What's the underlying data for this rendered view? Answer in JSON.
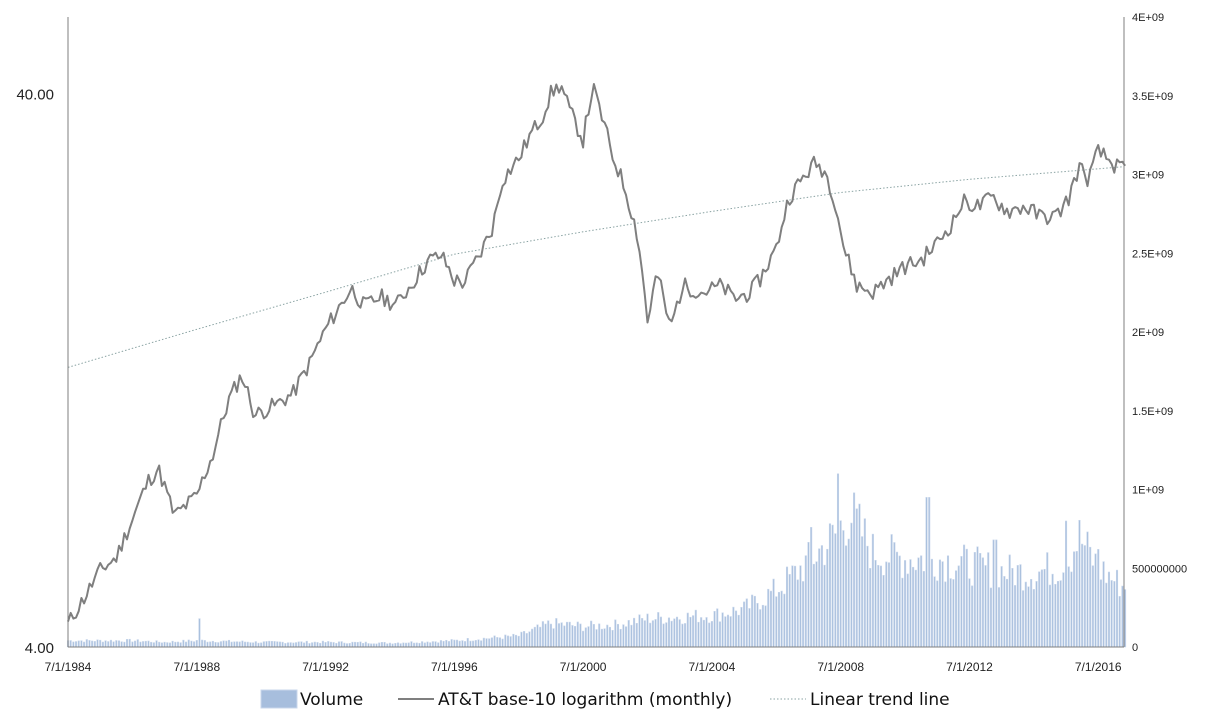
{
  "chart_data": {
    "type": "line",
    "title": "",
    "x_tick_labels": [
      "7/1/1984",
      "7/1/1988",
      "7/1/1992",
      "7/1/1996",
      "7/1/2000",
      "7/1/2004",
      "7/1/2008",
      "7/1/2012",
      "7/1/2016"
    ],
    "y_left": {
      "scale": "log10",
      "range": [
        4,
        55
      ],
      "tick_values": [
        4,
        40
      ],
      "tick_labels": [
        "4.00",
        "40.00"
      ]
    },
    "y_right": {
      "scale": "linear",
      "range": [
        0,
        4000000000
      ],
      "tick_values": [
        0,
        500000000,
        1000000000,
        1500000000,
        2000000000,
        2500000000,
        3000000000,
        3500000000,
        4000000000
      ],
      "tick_labels": [
        "0",
        "500000000",
        "1E+09",
        "1.5E+09",
        "2E+09",
        "2.5E+09",
        "3E+09",
        "3.5E+09",
        "4E+09"
      ]
    },
    "x_start_year": 1984.5,
    "x_end_year": 2017.3,
    "legend_position": "bottom",
    "legend": [
      "Volume",
      "AT&T base-10 logarithm (monthly)",
      "Linear trend line"
    ],
    "colors": {
      "volume": "#a7bedd",
      "volume_edge": "#c9d7eb",
      "price": "#7f7f7f",
      "trend": "#8aa3a3",
      "axis": "#7f7f7f"
    },
    "series": [
      {
        "name": "AT&T base-10 logarithm (monthly)",
        "axis": "left",
        "points": [
          [
            1984.5,
            4.4
          ],
          [
            1985.0,
            4.9
          ],
          [
            1985.5,
            5.5
          ],
          [
            1986.0,
            5.8
          ],
          [
            1986.5,
            6.8
          ],
          [
            1987.0,
            8.0
          ],
          [
            1987.3,
            8.4
          ],
          [
            1987.8,
            6.9
          ],
          [
            1988.5,
            7.5
          ],
          [
            1989.0,
            8.9
          ],
          [
            1989.5,
            11.2
          ],
          [
            1989.9,
            12.4
          ],
          [
            1990.3,
            10.5
          ],
          [
            1991.0,
            11.0
          ],
          [
            1991.5,
            11.5
          ],
          [
            1992.0,
            13.0
          ],
          [
            1992.5,
            15.0
          ],
          [
            1993.0,
            16.7
          ],
          [
            1993.3,
            17.8
          ],
          [
            1993.7,
            16.5
          ],
          [
            1994.2,
            17.2
          ],
          [
            1994.7,
            16.6
          ],
          [
            1995.2,
            18.2
          ],
          [
            1995.7,
            20.0
          ],
          [
            1996.1,
            20.4
          ],
          [
            1996.5,
            18.4
          ],
          [
            1996.8,
            18.2
          ],
          [
            1997.3,
            20.5
          ],
          [
            1997.7,
            23.0
          ],
          [
            1998.0,
            28.0
          ],
          [
            1998.5,
            30.5
          ],
          [
            1998.9,
            34.0
          ],
          [
            1999.2,
            36.0
          ],
          [
            1999.5,
            40.0
          ],
          [
            1999.8,
            41.5
          ],
          [
            2000.1,
            37.0
          ],
          [
            2000.5,
            33.0
          ],
          [
            2000.8,
            41.0
          ],
          [
            2001.1,
            36.0
          ],
          [
            2001.4,
            31.0
          ],
          [
            2001.8,
            27.0
          ],
          [
            2002.2,
            22.0
          ],
          [
            2002.5,
            15.5
          ],
          [
            2002.8,
            19.0
          ],
          [
            2003.2,
            15.0
          ],
          [
            2003.6,
            18.0
          ],
          [
            2004.2,
            17.5
          ],
          [
            2004.8,
            18.0
          ],
          [
            2005.2,
            17.0
          ],
          [
            2005.7,
            17.5
          ],
          [
            2006.0,
            18.5
          ],
          [
            2006.5,
            21.0
          ],
          [
            2006.9,
            26.0
          ],
          [
            2007.3,
            28.0
          ],
          [
            2007.7,
            30.0
          ],
          [
            2008.0,
            29.0
          ],
          [
            2008.3,
            26.0
          ],
          [
            2008.6,
            21.0
          ],
          [
            2009.0,
            18.0
          ],
          [
            2009.5,
            17.5
          ],
          [
            2010.0,
            18.5
          ],
          [
            2010.5,
            19.5
          ],
          [
            2011.0,
            20.0
          ],
          [
            2011.5,
            21.5
          ],
          [
            2012.0,
            23.5
          ],
          [
            2012.3,
            25.5
          ],
          [
            2012.8,
            25.0
          ],
          [
            2013.2,
            26.0
          ],
          [
            2013.7,
            24.5
          ],
          [
            2014.2,
            25.0
          ],
          [
            2014.7,
            24.0
          ],
          [
            2015.2,
            24.0
          ],
          [
            2015.6,
            26.0
          ],
          [
            2015.9,
            29.5
          ],
          [
            2016.2,
            28.0
          ],
          [
            2016.5,
            31.5
          ],
          [
            2016.9,
            30.0
          ],
          [
            2017.3,
            29.0
          ]
        ]
      },
      {
        "name": "Linear trend line",
        "axis": "left",
        "points": [
          [
            1984.5,
            12.8
          ],
          [
            1988.5,
            15.0
          ],
          [
            1992.5,
            17.5
          ],
          [
            1996.5,
            20.5
          ],
          [
            2000.5,
            22.5
          ],
          [
            2004.5,
            24.5
          ],
          [
            2008.5,
            26.5
          ],
          [
            2012.5,
            28.0
          ],
          [
            2017.3,
            29.5
          ]
        ]
      },
      {
        "name": "Volume",
        "axis": "right",
        "type": "bar",
        "points": [
          [
            1984.5,
            40000000
          ],
          [
            1986.5,
            40000000
          ],
          [
            1987.5,
            30000000
          ],
          [
            1988.5,
            40000000
          ],
          [
            1990.5,
            30000000
          ],
          [
            1992.5,
            30000000
          ],
          [
            1994.5,
            25000000
          ],
          [
            1996.5,
            40000000
          ],
          [
            1998.5,
            70000000
          ],
          [
            1999.5,
            150000000
          ],
          [
            2000.5,
            130000000
          ],
          [
            2001.5,
            140000000
          ],
          [
            2002.5,
            180000000
          ],
          [
            2003.5,
            190000000
          ],
          [
            2004.5,
            200000000
          ],
          [
            2005.5,
            240000000
          ],
          [
            2006.5,
            360000000
          ],
          [
            2007.5,
            540000000
          ],
          [
            2008.3,
            700000000
          ],
          [
            2008.8,
            850000000
          ],
          [
            2009.5,
            600000000
          ],
          [
            2010.5,
            560000000
          ],
          [
            2011.5,
            560000000
          ],
          [
            2012.5,
            520000000
          ],
          [
            2013.5,
            480000000
          ],
          [
            2014.5,
            470000000
          ],
          [
            2015.5,
            520000000
          ],
          [
            2015.9,
            700000000
          ],
          [
            2016.5,
            500000000
          ],
          [
            2017.3,
            380000000
          ]
        ],
        "spikes": [
          [
            1988.6,
            180000000
          ],
          [
            2008.4,
            1100000000
          ],
          [
            2011.2,
            950000000
          ],
          [
            2007.6,
            760000000
          ],
          [
            2015.5,
            800000000
          ],
          [
            2013.3,
            680000000
          ],
          [
            2016.5,
            620000000
          ]
        ]
      }
    ]
  }
}
